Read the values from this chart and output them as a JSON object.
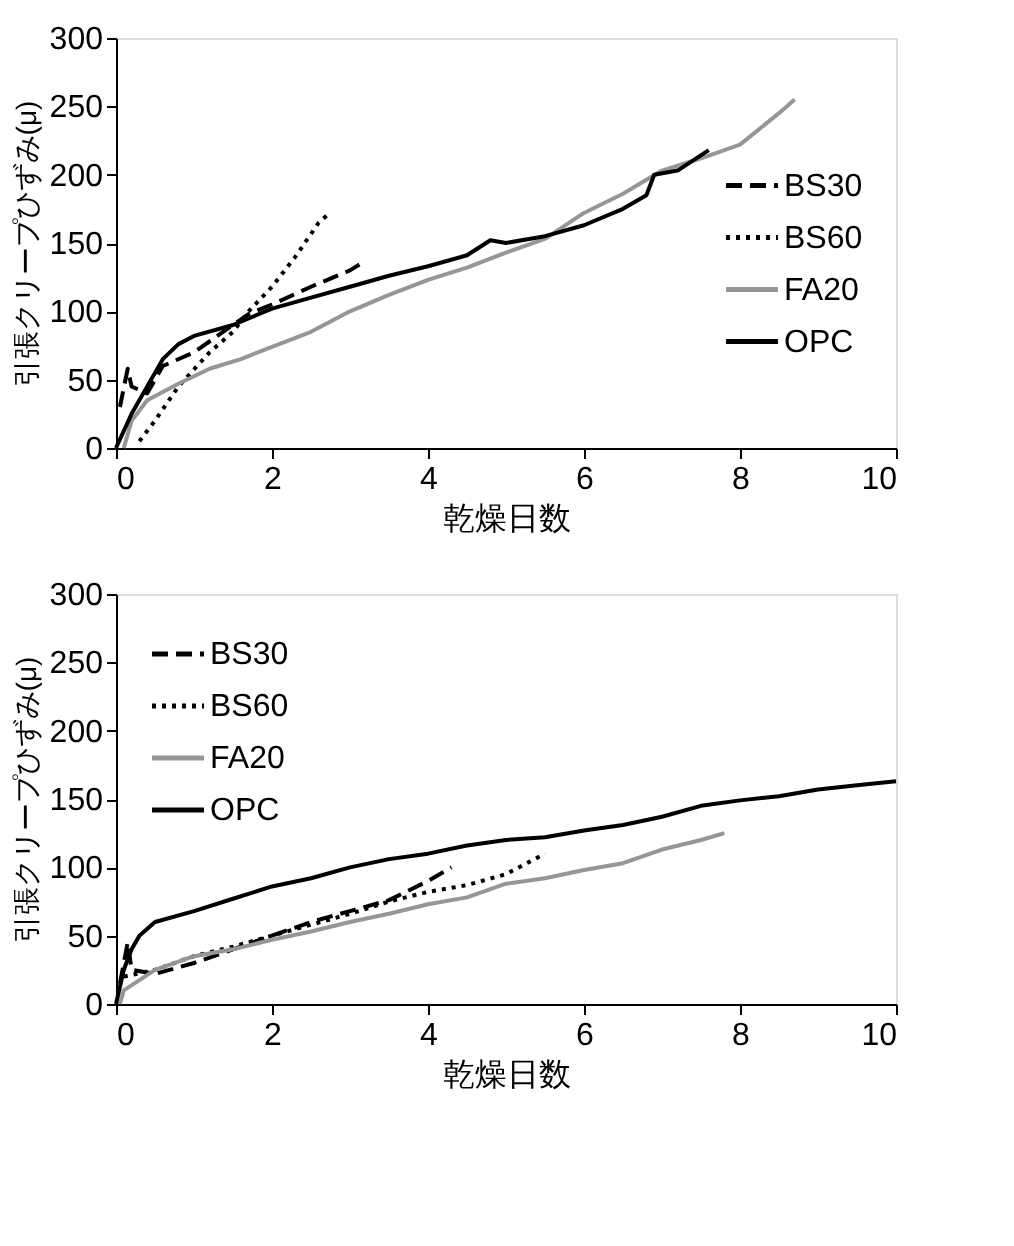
{
  "chart_data": [
    {
      "type": "line",
      "xlabel": "乾燥日数",
      "ylabel": "引張クリープひずみ(μ)",
      "xlim": [
        0,
        10
      ],
      "ylim": [
        0,
        300
      ],
      "xticks": [
        0,
        2,
        4,
        6,
        8,
        10
      ],
      "yticks": [
        0,
        50,
        100,
        150,
        200,
        250,
        300
      ],
      "legend": "right",
      "grid": false,
      "series": [
        {
          "name": "BS30",
          "color": "#000000",
          "line_style": "dashed",
          "x": [
            0.05,
            0.15,
            0.2,
            0.4,
            0.6,
            1.0,
            1.3,
            1.7,
            2.0,
            2.5,
            3.0,
            3.2
          ],
          "values": [
            30,
            58,
            45,
            40,
            60,
            70,
            82,
            98,
            105,
            118,
            130,
            137
          ]
        },
        {
          "name": "BS60",
          "color": "#000000",
          "line_style": "dotted",
          "x": [
            0.3,
            0.5,
            0.8,
            1.2,
            1.5,
            1.7,
            2.0,
            2.3,
            2.6,
            2.7
          ],
          "values": [
            5,
            20,
            45,
            70,
            85,
            100,
            118,
            140,
            165,
            170
          ]
        },
        {
          "name": "FA20",
          "color": "#969696",
          "line_style": "solid",
          "x": [
            0.1,
            0.2,
            0.4,
            0.8,
            1.2,
            1.6,
            2.0,
            2.5,
            3.0,
            3.5,
            4.0,
            4.5,
            5.0,
            5.5,
            6.0,
            6.5,
            7.0,
            7.5,
            8.0,
            8.5,
            8.7
          ],
          "values": [
            0,
            20,
            35,
            47,
            58,
            65,
            74,
            85,
            100,
            112,
            123,
            132,
            143,
            153,
            172,
            186,
            203,
            212,
            222,
            245,
            255
          ]
        },
        {
          "name": "OPC",
          "color": "#000000",
          "line_style": "solid",
          "x": [
            0,
            0.2,
            0.4,
            0.6,
            0.8,
            1.0,
            1.5,
            2.0,
            2.5,
            3.0,
            3.5,
            4.0,
            4.5,
            4.8,
            5.0,
            5.5,
            6.0,
            6.5,
            6.8,
            6.9,
            7.2,
            7.6
          ],
          "values": [
            0,
            25,
            45,
            65,
            76,
            82,
            90,
            102,
            110,
            118,
            126,
            133,
            141,
            152,
            150,
            155,
            163,
            175,
            185,
            200,
            203,
            218
          ]
        }
      ]
    },
    {
      "type": "line",
      "xlabel": "乾燥日数",
      "ylabel": "引張クリープひずみ(μ)",
      "xlim": [
        0,
        10
      ],
      "ylim": [
        0,
        300
      ],
      "xticks": [
        0,
        2,
        4,
        6,
        8,
        10
      ],
      "yticks": [
        0,
        50,
        100,
        150,
        200,
        250,
        300
      ],
      "legend": "top left",
      "grid": false,
      "series": [
        {
          "name": "BS30",
          "color": "#000000",
          "line_style": "dashed",
          "x": [
            0.05,
            0.15,
            0.2,
            0.5,
            1.0,
            1.5,
            2.0,
            2.5,
            3.0,
            3.5,
            4.0,
            4.3
          ],
          "values": [
            15,
            45,
            25,
            22,
            30,
            40,
            50,
            60,
            68,
            76,
            90,
            100
          ]
        },
        {
          "name": "BS60",
          "color": "#000000",
          "line_style": "dotted",
          "x": [
            0.1,
            0.5,
            1.0,
            1.5,
            2.0,
            2.5,
            3.0,
            3.5,
            4.0,
            4.5,
            5.0,
            5.5
          ],
          "values": [
            20,
            25,
            35,
            42,
            50,
            58,
            66,
            75,
            82,
            87,
            95,
            110
          ]
        },
        {
          "name": "FA20",
          "color": "#969696",
          "line_style": "solid",
          "x": [
            0.05,
            0.1,
            0.5,
            1.0,
            1.5,
            2.0,
            2.5,
            3.0,
            3.5,
            4.0,
            4.5,
            5.0,
            5.5,
            6.0,
            6.5,
            7.0,
            7.5,
            7.8
          ],
          "values": [
            0,
            10,
            25,
            35,
            40,
            47,
            53,
            60,
            66,
            73,
            78,
            88,
            92,
            98,
            103,
            113,
            120,
            125
          ]
        },
        {
          "name": "OPC",
          "color": "#000000",
          "line_style": "solid",
          "x": [
            0,
            0.1,
            0.2,
            0.3,
            0.5,
            1.0,
            1.5,
            2.0,
            2.5,
            3.0,
            3.5,
            4.0,
            4.5,
            5.0,
            5.5,
            6.0,
            6.5,
            7.0,
            7.5,
            8.0,
            8.5,
            9.0,
            9.5,
            10.0
          ],
          "values": [
            0,
            25,
            40,
            50,
            60,
            68,
            77,
            86,
            92,
            100,
            106,
            110,
            116,
            120,
            122,
            127,
            131,
            137,
            145,
            149,
            152,
            157,
            160,
            163
          ]
        }
      ]
    }
  ]
}
